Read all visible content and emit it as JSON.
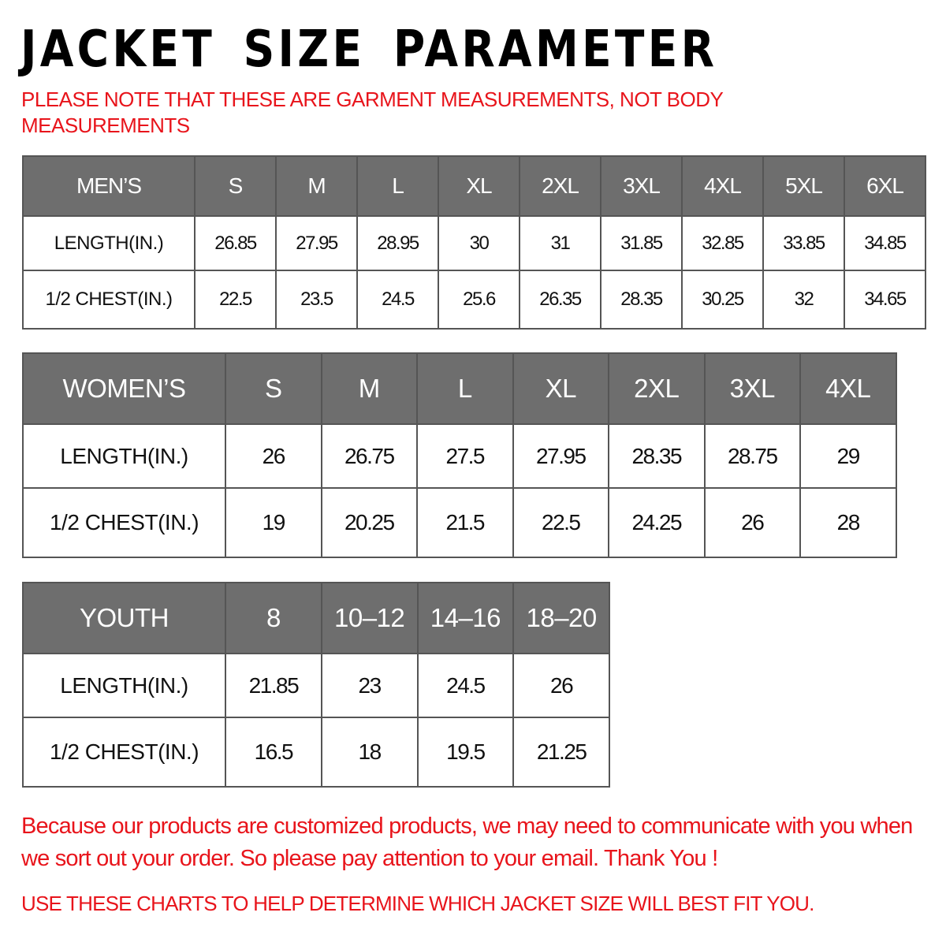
{
  "title": "JACKET SIZE PARAMETER",
  "note": "PLEASE NOTE THAT THESE ARE GARMENT MEASUREMENTS, NOT BODY MEASUREMENTS",
  "mens": {
    "header": "MEN’S",
    "sizes": [
      "S",
      "M",
      "L",
      "XL",
      "2XL",
      "3XL",
      "4XL",
      "5XL",
      "6XL"
    ],
    "rows": [
      {
        "label": "LENGTH(IN.)",
        "values": [
          "26.85",
          "27.95",
          "28.95",
          "30",
          "31",
          "31.85",
          "32.85",
          "33.85",
          "34.85"
        ]
      },
      {
        "label": "1/2 CHEST(IN.)",
        "values": [
          "22.5",
          "23.5",
          "24.5",
          "25.6",
          "26.35",
          "28.35",
          "30.25",
          "32",
          "34.65"
        ]
      }
    ]
  },
  "womens": {
    "header": "WOMEN’S",
    "sizes": [
      "S",
      "M",
      "L",
      "XL",
      "2XL",
      "3XL",
      "4XL"
    ],
    "rows": [
      {
        "label": "LENGTH(IN.)",
        "values": [
          "26",
          "26.75",
          "27.5",
          "27.95",
          "28.35",
          "28.75",
          "29"
        ]
      },
      {
        "label": "1/2 CHEST(IN.)",
        "values": [
          "19",
          "20.25",
          "21.5",
          "22.5",
          "24.25",
          "26",
          "28"
        ]
      }
    ]
  },
  "youth": {
    "header": "YOUTH",
    "sizes": [
      "8",
      "10–12",
      "14–16",
      "18–20"
    ],
    "rows": [
      {
        "label": "LENGTH(IN.)",
        "values": [
          "21.85",
          "23",
          "24.5",
          "26"
        ]
      },
      {
        "label": "1/2 CHEST(IN.)",
        "values": [
          "16.5",
          "18",
          "19.5",
          "21.25"
        ]
      }
    ]
  },
  "message": "Because our products are customized products, we may need to communicate with you when we sort out your order. So please pay attention to your email. Thank You !",
  "footer": "USE THESE CHARTS TO HELP DETERMINE WHICH JACKET SIZE WILL BEST FIT YOU.",
  "colors": {
    "header_bg": "#6e6e6e",
    "accent_red": "#e8141b"
  }
}
